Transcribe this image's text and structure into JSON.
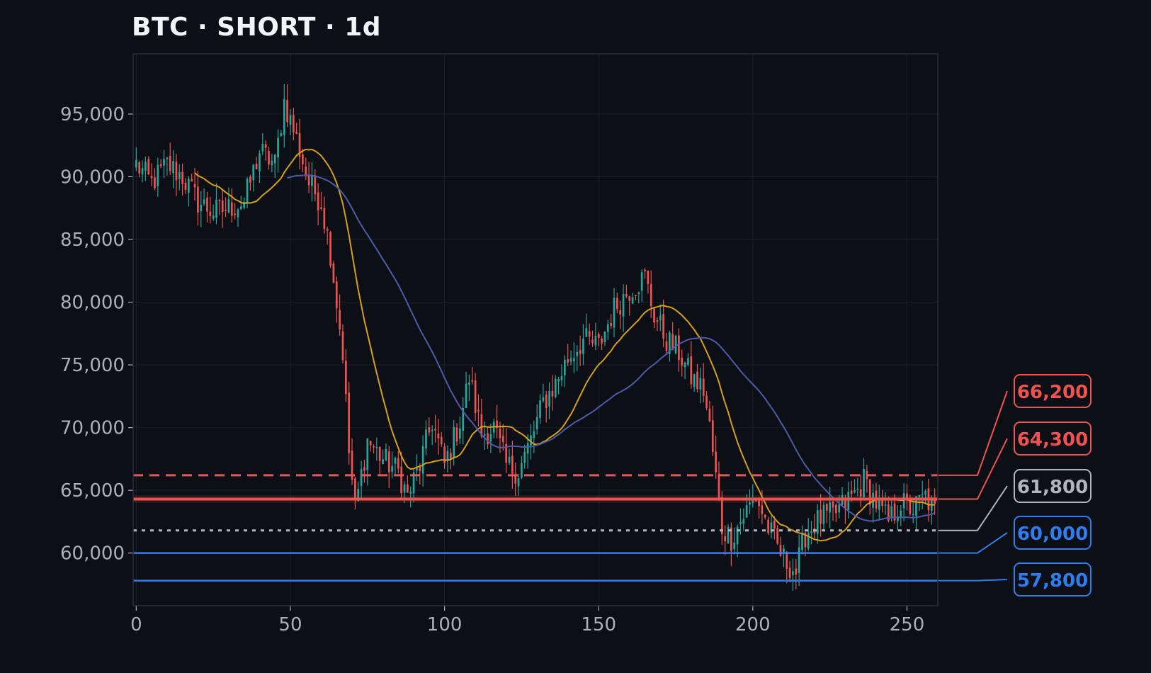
{
  "header": {
    "title": "BTC · SHORT · 1d"
  },
  "colors": {
    "background": "#0c0f16",
    "plot_border": "#2a2f3a",
    "grid": "#1b2029",
    "bull": "#26a69a",
    "bear": "#ef5350",
    "ma_fast": "#d4a017",
    "ma_slow": "#4f5aa8",
    "blue": "#2f7ef0",
    "neutral": "#b0b6bf"
  },
  "chart_data": {
    "type": "candlestick",
    "title": "BTC · SHORT · 1d",
    "xlabel": "",
    "ylabel": "",
    "xlim": [
      -1,
      260
    ],
    "ylim": [
      55800,
      99800
    ],
    "x_ticks": [
      0,
      50,
      100,
      150,
      200,
      250
    ],
    "y_ticks": [
      60000,
      65000,
      70000,
      75000,
      80000,
      85000,
      90000,
      95000
    ],
    "y_tick_labels": [
      "60,000",
      "65,000",
      "70,000",
      "75,000",
      "80,000",
      "85,000",
      "90,000",
      "95,000"
    ],
    "grid": true,
    "close_anchors": [
      [
        0,
        91000
      ],
      [
        5,
        89500
      ],
      [
        10,
        91000
      ],
      [
        15,
        90000
      ],
      [
        20,
        88000
      ],
      [
        25,
        87200
      ],
      [
        30,
        87500
      ],
      [
        35,
        88000
      ],
      [
        40,
        92000
      ],
      [
        45,
        91000
      ],
      [
        48,
        96000
      ],
      [
        52,
        93000
      ],
      [
        56,
        89500
      ],
      [
        60,
        88000
      ],
      [
        63,
        84000
      ],
      [
        65,
        80000
      ],
      [
        67,
        76000
      ],
      [
        69,
        68000
      ],
      [
        71,
        63500
      ],
      [
        75,
        69000
      ],
      [
        80,
        67500
      ],
      [
        85,
        66500
      ],
      [
        88,
        64500
      ],
      [
        92,
        67000
      ],
      [
        96,
        70500
      ],
      [
        100,
        67000
      ],
      [
        105,
        70500
      ],
      [
        108,
        74000
      ],
      [
        112,
        69500
      ],
      [
        116,
        70000
      ],
      [
        120,
        67000
      ],
      [
        124,
        66500
      ],
      [
        128,
        69000
      ],
      [
        132,
        72000
      ],
      [
        136,
        73500
      ],
      [
        140,
        75500
      ],
      [
        145,
        77000
      ],
      [
        150,
        76500
      ],
      [
        155,
        79500
      ],
      [
        160,
        81000
      ],
      [
        165,
        82000
      ],
      [
        168,
        79000
      ],
      [
        172,
        77000
      ],
      [
        176,
        76000
      ],
      [
        180,
        74000
      ],
      [
        184,
        73000
      ],
      [
        186,
        70000
      ],
      [
        188,
        66000
      ],
      [
        190,
        62000
      ],
      [
        193,
        61200
      ],
      [
        197,
        63000
      ],
      [
        201,
        64500
      ],
      [
        205,
        62000
      ],
      [
        210,
        59500
      ],
      [
        214,
        58500
      ],
      [
        217,
        61500
      ],
      [
        222,
        62800
      ],
      [
        226,
        63000
      ],
      [
        230,
        64000
      ],
      [
        234,
        65000
      ],
      [
        236,
        65800
      ],
      [
        240,
        64000
      ],
      [
        244,
        62500
      ],
      [
        248,
        64000
      ],
      [
        252,
        63500
      ],
      [
        256,
        64500
      ],
      [
        259,
        63200
      ]
    ],
    "series": [
      {
        "name": "",
        "kind": "ma",
        "period": 20,
        "color": "#d4a017",
        "start": 19
      },
      {
        "name": "",
        "kind": "ma",
        "period": 50,
        "color": "#4f5aa8",
        "start": 49
      }
    ],
    "levels": [
      {
        "value": 66200,
        "label": "66,200",
        "color": "#ef5350",
        "style": "dashed"
      },
      {
        "value": 64300,
        "label": "64,300",
        "color": "#ef5350",
        "style": "solid-thick"
      },
      {
        "value": 61800,
        "label": "61,800",
        "color": "#b0b6bf",
        "style": "dotted"
      },
      {
        "value": 60000,
        "label": "60,000",
        "color": "#2f7ef0",
        "style": "solid"
      },
      {
        "value": 57800,
        "label": "57,800",
        "color": "#2f7ef0",
        "style": "solid"
      }
    ],
    "entry_zone": [
      64000,
      64600
    ]
  }
}
